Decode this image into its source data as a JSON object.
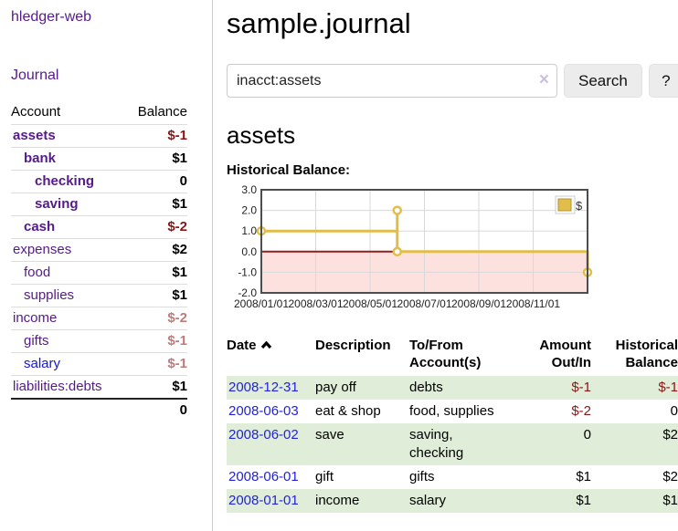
{
  "sidebar": {
    "title": "hledger-web",
    "nav_journal": "Journal",
    "table_headers": {
      "account": "Account",
      "balance": "Balance"
    },
    "accounts": [
      {
        "name": "assets",
        "balance": "$-1"
      },
      {
        "name": "bank",
        "balance": "$1"
      },
      {
        "name": "checking",
        "balance": "0"
      },
      {
        "name": "saving",
        "balance": "$1"
      },
      {
        "name": "cash",
        "balance": "$-2"
      },
      {
        "name": "expenses",
        "balance": "$2"
      },
      {
        "name": "food",
        "balance": "$1"
      },
      {
        "name": "supplies",
        "balance": "$1"
      },
      {
        "name": "income",
        "balance": "$-2"
      },
      {
        "name": "gifts",
        "balance": "$-1"
      },
      {
        "name": "salary",
        "balance": "$-1"
      },
      {
        "name": "liabilities:debts",
        "balance": "$1"
      }
    ],
    "total": "0"
  },
  "header": {
    "title": "sample.journal"
  },
  "search": {
    "value": "inacct:assets",
    "clear_icon": "×",
    "button_label": "Search",
    "help_label": "?"
  },
  "account_page": {
    "heading": "assets",
    "chart_label": "Historical Balance:"
  },
  "chart_data": {
    "type": "line",
    "title": "Historical Balance",
    "legend": [
      "$"
    ],
    "legend_position": "top-right",
    "grid": true,
    "xlim": [
      0,
      12
    ],
    "ylim": [
      -2,
      3
    ],
    "yticks": [
      3.0,
      2.0,
      1.0,
      0.0,
      -1.0,
      -2.0
    ],
    "xticks": [
      {
        "pos": 0,
        "label": "2008/01/01"
      },
      {
        "pos": 2,
        "label": "2008/03/01"
      },
      {
        "pos": 4,
        "label": "2008/05/01"
      },
      {
        "pos": 6,
        "label": "2008/07/01"
      },
      {
        "pos": 8,
        "label": "2008/09/01"
      },
      {
        "pos": 10,
        "label": "2008/11/01"
      }
    ],
    "series": [
      {
        "name": "$",
        "points": [
          [
            0,
            1
          ],
          [
            5,
            1
          ],
          [
            5,
            2
          ],
          [
            5,
            0
          ],
          [
            12,
            0
          ],
          [
            12,
            -1
          ]
        ],
        "markers": [
          [
            0,
            1
          ],
          [
            5,
            2
          ],
          [
            5,
            0
          ],
          [
            12,
            -1
          ]
        ]
      }
    ],
    "colors": {
      "line": "#e3bd4a",
      "marker_fill": "#ffffff",
      "negative_fill": "#fde1df",
      "zero_line": "#9b1b1b",
      "grid": "#d8d8d8",
      "border": "#4d4d4d",
      "tick_text": "#222222",
      "legend_swatch_border": "#b1953a"
    }
  },
  "register_table": {
    "headers": {
      "date": "Date",
      "description": "Description",
      "tofrom": "To/From Account(s)",
      "amount": "Amount Out/In",
      "balance": "Historical Balance"
    },
    "sort_icon": "chevron-up",
    "rows": [
      {
        "date": "2008-12-31",
        "description": "pay off",
        "tofrom": "debts",
        "amount": "$-1",
        "balance": "$-1"
      },
      {
        "date": "2008-06-03",
        "description": "eat & shop",
        "tofrom": "food, supplies",
        "amount": "$-2",
        "balance": "0"
      },
      {
        "date": "2008-06-02",
        "description": "save",
        "tofrom": "saving, checking",
        "amount": "0",
        "balance": "$2"
      },
      {
        "date": "2008-06-01",
        "description": "gift",
        "tofrom": "gifts",
        "amount": "$1",
        "balance": "$2"
      },
      {
        "date": "2008-01-01",
        "description": "income",
        "tofrom": "salary",
        "amount": "$1",
        "balance": "$1"
      }
    ]
  },
  "colors": {
    "accent_purple": "#551a8b",
    "link_blue": "#1414dd",
    "date_link_blue": "#2222dd",
    "negative_strong": "#8b1414",
    "negative_light": "#bd7b7b",
    "row_stripe_green": "#e0eed9"
  }
}
